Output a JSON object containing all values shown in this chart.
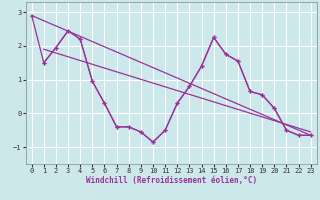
{
  "xlabel": "Windchill (Refroidissement éolien,°C)",
  "bg_color": "#cce8ea",
  "grid_color": "#ffffff",
  "line_color": "#993399",
  "spine_color": "#993399",
  "xlim": [
    -0.5,
    23.5
  ],
  "ylim": [
    -1.5,
    3.3
  ],
  "xticks": [
    0,
    1,
    2,
    3,
    4,
    5,
    6,
    7,
    8,
    9,
    10,
    11,
    12,
    13,
    14,
    15,
    16,
    17,
    18,
    19,
    20,
    21,
    22,
    23
  ],
  "yticks": [
    -1,
    0,
    1,
    2,
    3
  ],
  "series1_x": [
    0,
    1,
    2,
    3,
    4,
    5,
    6,
    7,
    8,
    9,
    10,
    11,
    12,
    13,
    14,
    15,
    16,
    17,
    18,
    19,
    20,
    21,
    22,
    23
  ],
  "series1_y": [
    2.9,
    1.5,
    1.95,
    2.45,
    2.2,
    0.95,
    0.3,
    -0.4,
    -0.4,
    -0.55,
    -0.85,
    -0.5,
    0.3,
    0.8,
    1.4,
    2.25,
    1.75,
    1.55,
    0.65,
    0.55,
    0.15,
    -0.5,
    -0.65,
    -0.65
  ],
  "trend1_x": [
    0,
    23
  ],
  "trend1_y": [
    2.9,
    -0.65
  ],
  "trend2_x": [
    1,
    23
  ],
  "trend2_y": [
    1.9,
    -0.55
  ],
  "xlabel_color": "#993399",
  "xlabel_fontsize": 5.5,
  "tick_fontsize": 5,
  "tick_color": "#333333"
}
